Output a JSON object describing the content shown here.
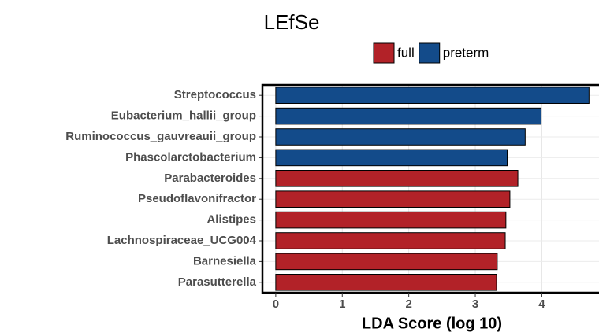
{
  "chart_data": {
    "type": "bar",
    "orientation": "horizontal",
    "title": "LEfSe",
    "xlabel": "LDA Score (log 10)",
    "categories": [
      "Streptococcus",
      "Eubacterium_hallii_group",
      "Ruminococcus_gauvreauii_group",
      "Phascolarctobacterium",
      "Parabacteroides",
      "Pseudoflavonifractor",
      "Alistipes",
      "Lachnospiraceae_UCG004",
      "Barnesiella",
      "Parasutterella"
    ],
    "series": [
      {
        "name": "full",
        "color": "#b22228",
        "values": [
          null,
          null,
          null,
          null,
          3.64,
          3.52,
          3.46,
          3.45,
          3.33,
          3.32
        ]
      },
      {
        "name": "preterm",
        "color": "#134b8a",
        "values": [
          4.71,
          3.99,
          3.75,
          3.48,
          null,
          null,
          null,
          null,
          null,
          null
        ]
      }
    ],
    "xlim": [
      -0.2,
      4.86
    ],
    "xticks": [
      0,
      1,
      2,
      3,
      4
    ],
    "grid": true,
    "legend": "top"
  }
}
